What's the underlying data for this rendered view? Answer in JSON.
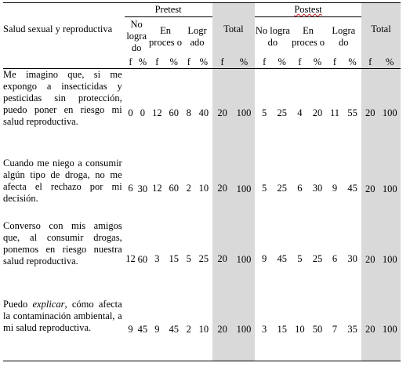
{
  "header": {
    "row_label": "Salud sexual y reproductiva",
    "pretest": "Pretest",
    "postest": "Postest",
    "cols_pre": [
      "No logra do",
      "En proces o",
      "Logr ado",
      "Total"
    ],
    "cols_post": [
      "No logra do",
      "En proces o",
      "Logra do",
      "Total"
    ],
    "f": "f",
    "pct": "%"
  },
  "rows": [
    {
      "text": "Me imagino que, si me expongo a insecticidas y pesticidas sin protección, puedo poner en riesgo mi salud reproductiva.",
      "pre": [
        "0",
        "0",
        "12",
        "60",
        "8",
        "40",
        "20",
        "100"
      ],
      "post": [
        "5",
        "25",
        "4",
        "20",
        "11",
        "55",
        "20",
        "100"
      ]
    },
    {
      "text": "Cuando me niego a consumir algún tipo de droga, no me afecta el rechazo por mi decisión.",
      "pre": [
        "6",
        "30",
        "12",
        "60",
        "2",
        "10",
        "20",
        "100"
      ],
      "post": [
        "5",
        "25",
        "6",
        "30",
        "9",
        "45",
        "20",
        "100"
      ]
    },
    {
      "text": "Converso con mis amigos que, al consumir drogas, ponemos en riesgo nuestra salud reproductiva.",
      "pre": [
        "12",
        "60",
        "3",
        "15",
        "5",
        "25",
        "20",
        "100"
      ],
      "post": [
        "9",
        "45",
        "5",
        "25",
        "6",
        "30",
        "20",
        "100"
      ]
    },
    {
      "text_before": "Puedo",
      "text_italic": "explicar",
      "text_after": ", cómo afecta la contaminación ambiental, a mi salud reproductiva.",
      "pre": [
        "9",
        "45",
        "9",
        "45",
        "2",
        "10",
        "20",
        "100"
      ],
      "post": [
        "3",
        "15",
        "10",
        "50",
        "7",
        "35",
        "20",
        "100"
      ]
    }
  ]
}
